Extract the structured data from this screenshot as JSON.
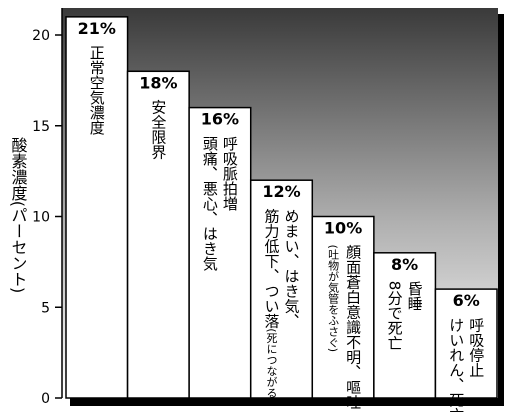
{
  "chart_data": {
    "type": "bar",
    "y_label": "酸素濃度(パーセント)",
    "categories": [
      "21%",
      "18%",
      "16%",
      "12%",
      "10%",
      "8%",
      "6%"
    ],
    "values": [
      21,
      18,
      16,
      12,
      10,
      8,
      6
    ],
    "value_labels": [
      "21%",
      "18%",
      "16%",
      "12%",
      "10%",
      "8%",
      "6%"
    ],
    "descriptions": [
      [
        [
          "正常空気濃度"
        ]
      ],
      [
        [
          "安全限界"
        ]
      ],
      [
        [
          "呼吸脈拍増"
        ],
        [
          "頭痛、悪心、はき気"
        ]
      ],
      [
        [
          "めまい、はき気、"
        ],
        [
          "筋力低下、つい落",
          "(死につながる)"
        ]
      ],
      [
        [
          "顔面蒼白意識不明、嘔吐"
        ],
        [
          "(吐物が気管をふさぐ)"
        ]
      ],
      [
        [
          "昏睡"
        ],
        [
          "8分で死亡"
        ]
      ],
      [
        [
          "呼吸停止"
        ],
        [
          "けいれん、死亡"
        ]
      ]
    ],
    "color": "#ffffff",
    "ylim": [
      0,
      20
    ],
    "yticks": [
      0,
      5,
      10,
      15,
      20
    ]
  }
}
